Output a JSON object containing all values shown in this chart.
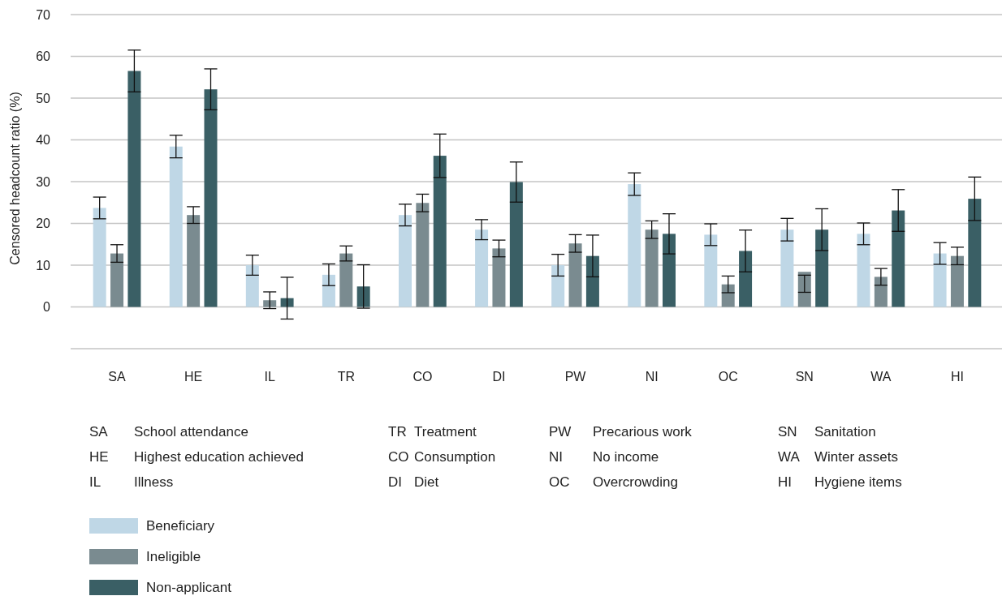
{
  "chart_data": {
    "type": "bar",
    "ylabel": "Censored headcount ratio (%)",
    "categories": [
      "SA",
      "HE",
      "IL",
      "TR",
      "CO",
      "DI",
      "PW",
      "NI",
      "OC",
      "SN",
      "WA",
      "HI"
    ],
    "series": [
      {
        "name": "Beneficiary",
        "color": "#bfd7e6",
        "values": [
          23.7,
          38.4,
          10.0,
          7.7,
          22.0,
          18.5,
          10.0,
          29.4,
          17.3,
          18.5,
          17.5,
          12.8
        ],
        "errors": [
          2.6,
          2.7,
          2.4,
          2.6,
          2.6,
          2.4,
          2.6,
          2.7,
          2.6,
          2.7,
          2.6,
          2.6
        ]
      },
      {
        "name": "Ineligible",
        "color": "#7a8b90",
        "values": [
          12.8,
          22.0,
          1.6,
          12.8,
          24.9,
          14.0,
          15.2,
          18.5,
          5.4,
          8.4,
          7.2,
          12.2
        ],
        "errors": [
          2.1,
          2.0,
          2.0,
          1.8,
          2.1,
          2.0,
          2.1,
          2.1,
          2.0,
          [
            3.5,
            7.6
          ],
          2.0,
          2.1
        ]
      },
      {
        "name": "Non-applicant",
        "color": "#3a5f65",
        "values": [
          56.5,
          52.1,
          2.1,
          4.9,
          36.2,
          29.9,
          12.2,
          17.5,
          13.4,
          18.5,
          23.1,
          25.9
        ],
        "errors": [
          5.0,
          4.9,
          5.0,
          5.2,
          5.2,
          4.8,
          5.0,
          4.8,
          5.0,
          5.0,
          5.0,
          5.2
        ]
      }
    ],
    "ylim": [
      -10,
      70
    ],
    "yticks": [
      {
        "value": -10,
        "label": null
      },
      0,
      10,
      20,
      30,
      40,
      50,
      60,
      70
    ],
    "grid": "y",
    "legend": "bottom left",
    "annotations": [
      "SA School attendance",
      "HE Highest education achieved",
      "IL Illness",
      "TR Treatment",
      "CO Consumption",
      "DI Diet",
      "PW Precarious work",
      "NI No income",
      "OC Overcrowding",
      "SN Sanitation",
      "WA Winter assets",
      "HI Hygiene items"
    ]
  }
}
